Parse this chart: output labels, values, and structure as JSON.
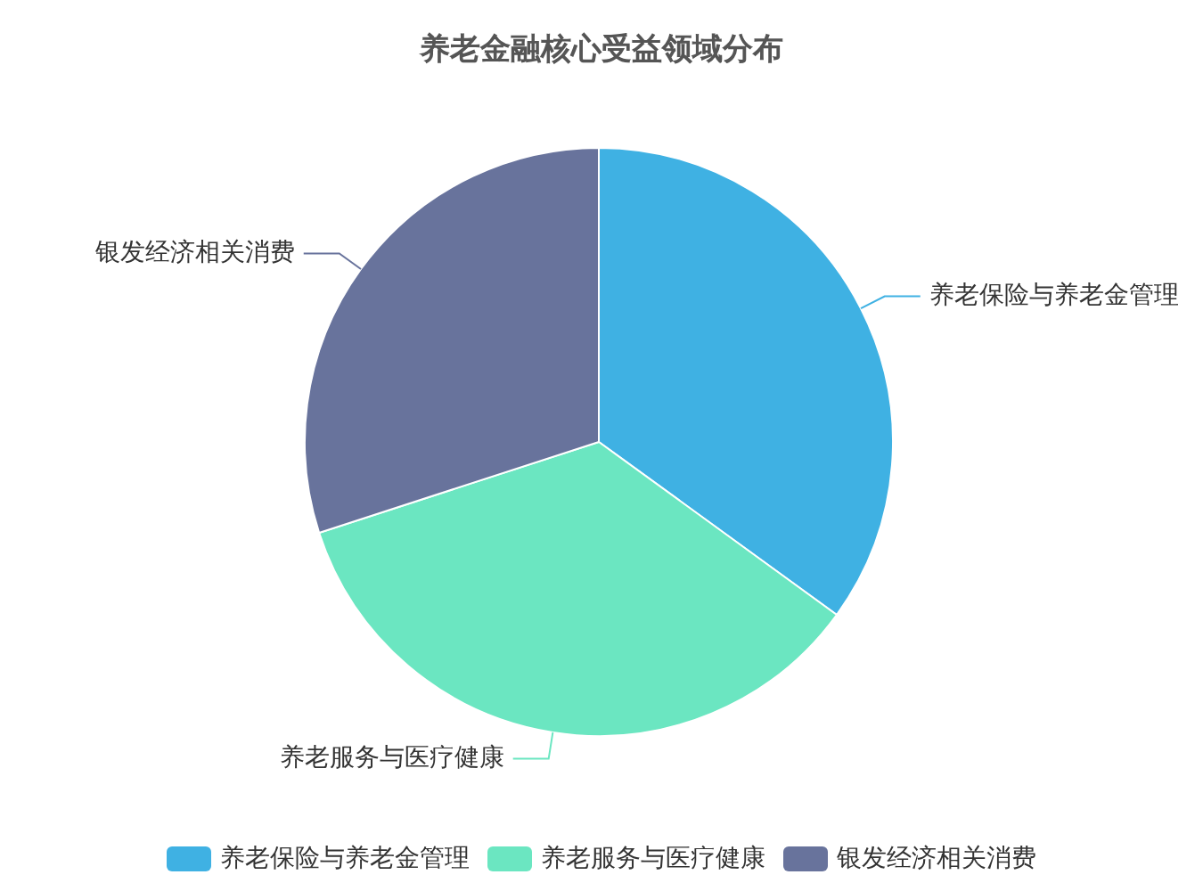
{
  "chart_data": {
    "type": "pie",
    "title": "养老金融核心受益领域分布",
    "categories": [
      "养老保险与养老金管理",
      "养老服务与医疗健康",
      "银发经济相关消费"
    ],
    "values": [
      35,
      35,
      30
    ],
    "colors": [
      "#3fb1e3",
      "#6be6c1",
      "#68739c"
    ],
    "legend": "bottom"
  }
}
